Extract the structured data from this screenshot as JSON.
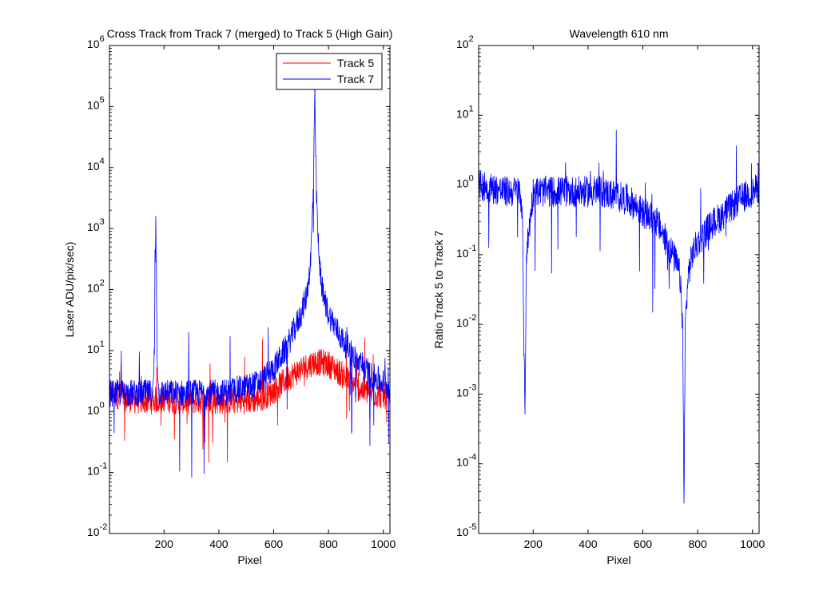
{
  "figure": {
    "background": "#ffffff"
  },
  "chart_data": [
    {
      "type": "line",
      "title": "Cross Track from Track 7 (merged) to Track 5 (High Gain)",
      "xlabel": "Pixel",
      "ylabel": "Laser ADU/pix/sec)",
      "xlim": [
        1,
        1024
      ],
      "ylim": [
        0.01,
        1000000
      ],
      "yscale": "log",
      "xticks": [
        200,
        400,
        600,
        800,
        1000
      ],
      "yticks": [
        {
          "base": "10",
          "exp": "-2"
        },
        {
          "base": "10",
          "exp": "-1"
        },
        {
          "base": "10",
          "exp": "0"
        },
        {
          "base": "10",
          "exp": "1"
        },
        {
          "base": "10",
          "exp": "2"
        },
        {
          "base": "10",
          "exp": "3"
        },
        {
          "base": "10",
          "exp": "4"
        },
        {
          "base": "10",
          "exp": "5"
        },
        {
          "base": "10",
          "exp": "6"
        }
      ],
      "legend_position": "top-right",
      "grid": false,
      "series": [
        {
          "name": "Track 5",
          "color": "#ff0000",
          "x": [
            1,
            50,
            100,
            150,
            200,
            250,
            300,
            350,
            400,
            450,
            500,
            550,
            600,
            650,
            700,
            750,
            800,
            850,
            900,
            950,
            1000,
            1024
          ],
          "y": [
            2,
            1.7,
            1.5,
            1.5,
            1.6,
            1.5,
            1.5,
            1.5,
            1.5,
            1.5,
            1.5,
            1.6,
            2.2,
            3.5,
            5,
            6.5,
            6,
            4,
            2.5,
            2,
            1.8,
            1.8
          ]
        },
        {
          "name": "Track 7",
          "color": "#0000ff",
          "x": [
            1,
            50,
            100,
            150,
            160,
            165,
            170,
            175,
            180,
            200,
            250,
            300,
            350,
            400,
            450,
            500,
            550,
            600,
            650,
            700,
            720,
            735,
            745,
            750,
            755,
            765,
            780,
            800,
            850,
            900,
            950,
            1000,
            1024
          ],
          "y": [
            2,
            2,
            2,
            2,
            2,
            10,
            1800,
            10,
            2,
            2,
            2,
            2,
            2,
            2,
            2.2,
            2.5,
            3,
            5,
            12,
            40,
            80,
            300,
            5000,
            150000,
            5000,
            300,
            80,
            40,
            15,
            7,
            4,
            3,
            2.5
          ]
        }
      ]
    },
    {
      "type": "line",
      "title": "Wavelength 610 nm",
      "xlabel": "Pixel",
      "ylabel": "Ratio Track 5 to Track 7",
      "xlim": [
        1,
        1024
      ],
      "ylim": [
        1e-05,
        100
      ],
      "yscale": "log",
      "xticks": [
        200,
        400,
        600,
        800,
        1000
      ],
      "yticks": [
        {
          "base": "10",
          "exp": "-5"
        },
        {
          "base": "10",
          "exp": "-4"
        },
        {
          "base": "10",
          "exp": "-3"
        },
        {
          "base": "10",
          "exp": "-2"
        },
        {
          "base": "10",
          "exp": "-1"
        },
        {
          "base": "10",
          "exp": "0"
        },
        {
          "base": "10",
          "exp": "1"
        },
        {
          "base": "10",
          "exp": "2"
        }
      ],
      "grid": false,
      "series": [
        {
          "color": "#0000ff",
          "x": [
            1,
            50,
            100,
            150,
            160,
            165,
            170,
            175,
            200,
            250,
            300,
            350,
            400,
            450,
            500,
            550,
            600,
            650,
            700,
            720,
            735,
            745,
            750,
            755,
            765,
            780,
            800,
            850,
            900,
            950,
            1000,
            1024
          ],
          "y": [
            1,
            0.9,
            0.8,
            0.8,
            0.5,
            0.01,
            0.0005,
            0.1,
            0.8,
            0.8,
            0.8,
            0.8,
            0.8,
            0.8,
            0.7,
            0.6,
            0.4,
            0.3,
            0.12,
            0.08,
            0.05,
            0.01,
            3e-05,
            0.01,
            0.05,
            0.1,
            0.15,
            0.27,
            0.4,
            0.6,
            0.8,
            0.9
          ]
        }
      ]
    }
  ]
}
